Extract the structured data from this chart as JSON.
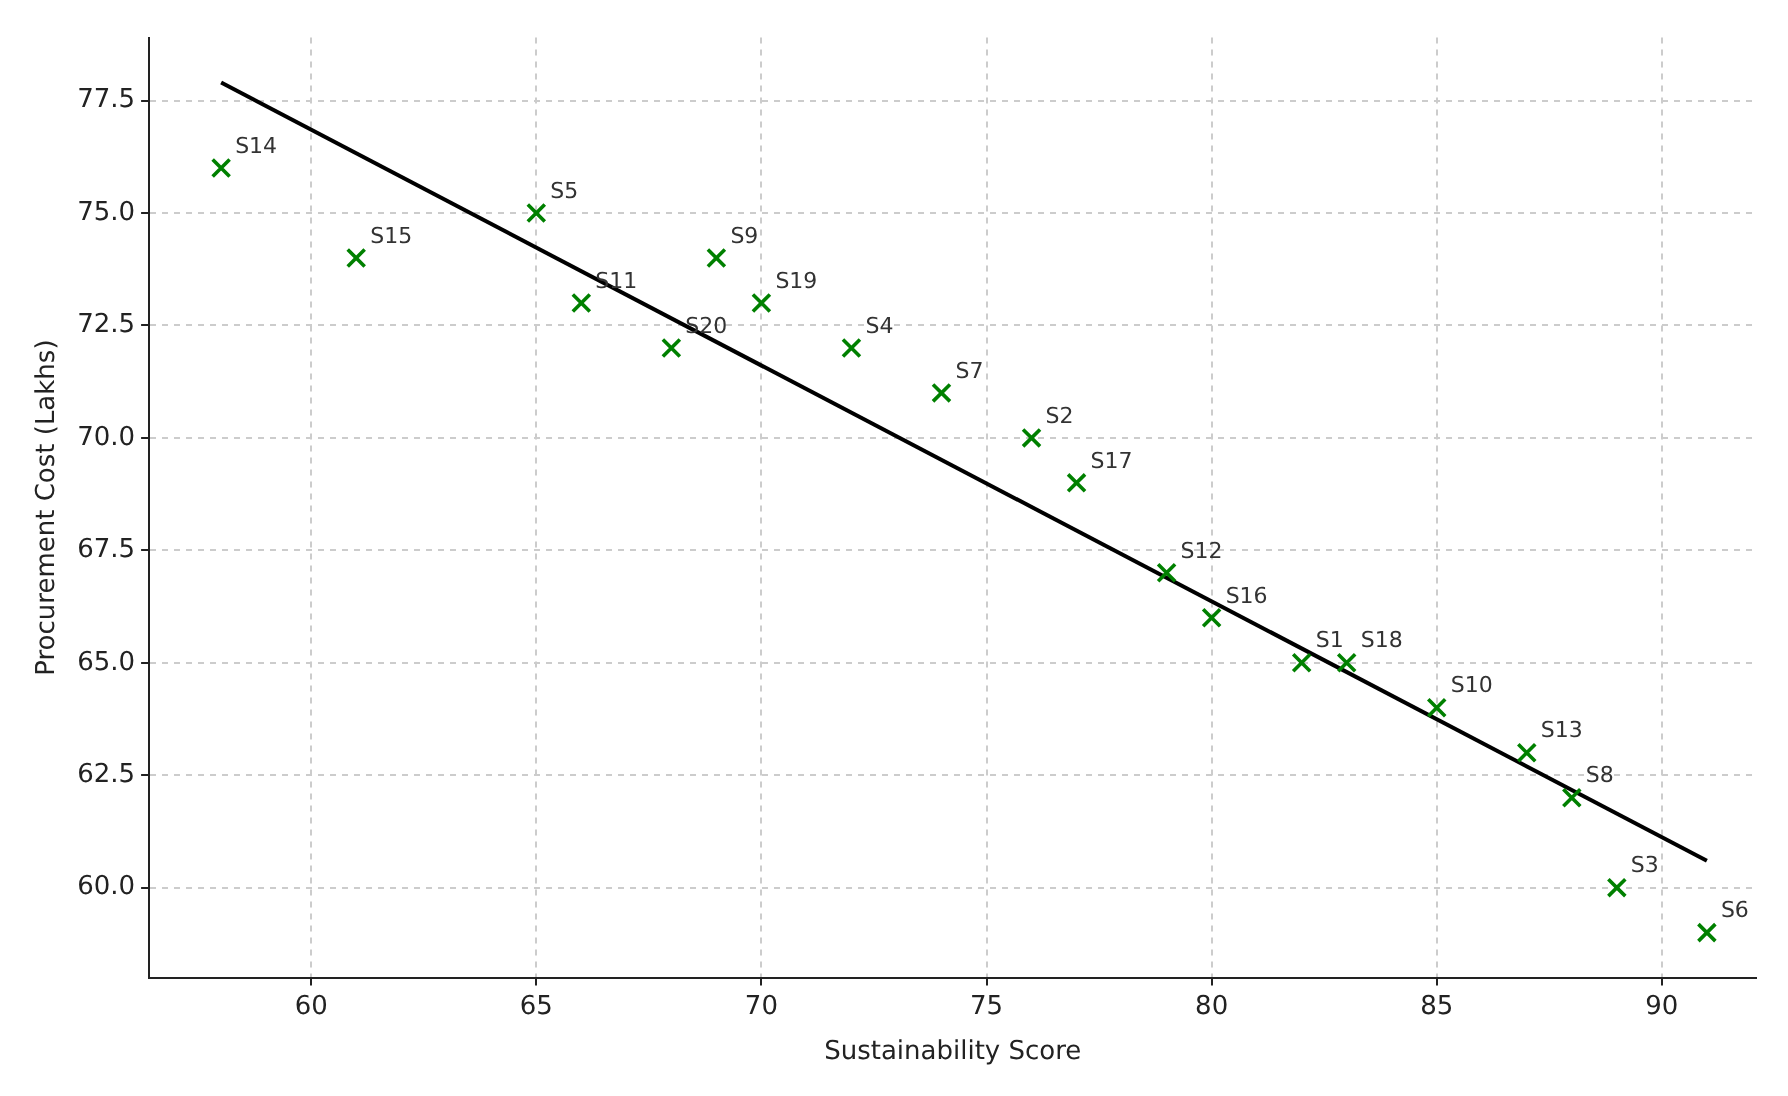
{
  "chart_data": {
    "type": "scatter",
    "xlabel": "Sustainability Score",
    "ylabel": "Procurement Cost (Lakhs)",
    "series": [
      {
        "color": "#008000",
        "x": [
          58,
          61,
          65,
          66,
          68,
          69,
          70,
          72,
          74,
          76,
          77,
          79,
          80,
          82,
          83,
          85,
          87,
          88,
          89,
          91
        ],
        "values": [
          76,
          74,
          75,
          73,
          72,
          74,
          73,
          72,
          71,
          70,
          69,
          67,
          66,
          65,
          65,
          64,
          63,
          62,
          60,
          59
        ],
        "marker": "cross"
      },
      {
        "type": "line",
        "color": "#000000",
        "x": [
          58,
          91
        ],
        "values": [
          77.9,
          60.6
        ],
        "marker": "none",
        "line_style": "solid"
      }
    ],
    "annotations": [
      {
        "text": "S14",
        "x": 58,
        "y": 76
      },
      {
        "text": "S15",
        "x": 61,
        "y": 74
      },
      {
        "text": "S5",
        "x": 65,
        "y": 75
      },
      {
        "text": "S11",
        "x": 66,
        "y": 73
      },
      {
        "text": "S20",
        "x": 68,
        "y": 72
      },
      {
        "text": "S9",
        "x": 69,
        "y": 74
      },
      {
        "text": "S19",
        "x": 70,
        "y": 73
      },
      {
        "text": "S4",
        "x": 72,
        "y": 72
      },
      {
        "text": "S7",
        "x": 74,
        "y": 71
      },
      {
        "text": "S2",
        "x": 76,
        "y": 70
      },
      {
        "text": "S17",
        "x": 77,
        "y": 69
      },
      {
        "text": "S12",
        "x": 79,
        "y": 67
      },
      {
        "text": "S16",
        "x": 80,
        "y": 66
      },
      {
        "text": "S1",
        "x": 82,
        "y": 65
      },
      {
        "text": "S18",
        "x": 83,
        "y": 65
      },
      {
        "text": "S10",
        "x": 85,
        "y": 64
      },
      {
        "text": "S13",
        "x": 87,
        "y": 63
      },
      {
        "text": "S8",
        "x": 88,
        "y": 62
      },
      {
        "text": "S3",
        "x": 89,
        "y": 60
      },
      {
        "text": "S6",
        "x": 91,
        "y": 59
      }
    ],
    "xlim": [
      56.4,
      92.1
    ],
    "xticks": [
      60,
      65,
      70,
      75,
      80,
      85,
      90
    ],
    "ylim": [
      58.0,
      78.9
    ],
    "yticks": [
      {
        "value": 60,
        "label": "60.0"
      },
      {
        "value": 62.5,
        "label": "62.5"
      },
      {
        "value": 65,
        "label": "65.0"
      },
      {
        "value": 67.5,
        "label": "67.5"
      },
      {
        "value": 70,
        "label": "70.0"
      },
      {
        "value": 72.5,
        "label": "72.5"
      },
      {
        "value": 75,
        "label": "75.0"
      },
      {
        "value": 77.5,
        "label": "77.5"
      }
    ],
    "grid": true,
    "legend": false
  }
}
